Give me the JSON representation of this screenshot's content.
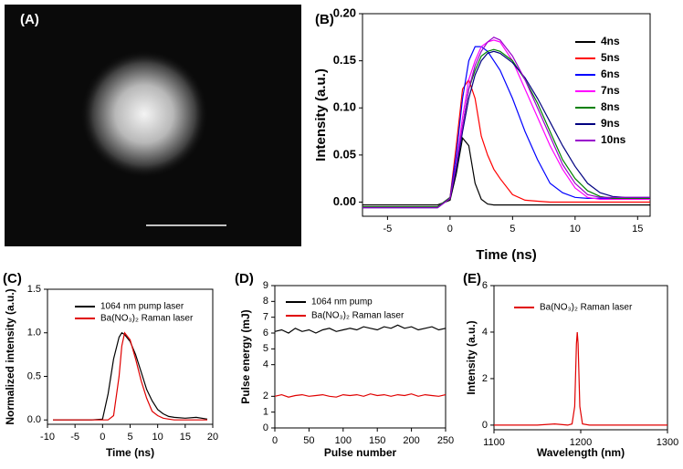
{
  "chart_data": [
    {
      "type": "image",
      "label": "(A)"
    },
    {
      "type": "line",
      "label": "(B)",
      "x_label": "Time (ns)",
      "y_label": "Intensity (a.u.)",
      "x": [
        -7,
        -5,
        -3,
        -1,
        0,
        0.5,
        1,
        1.5,
        2,
        2.5,
        3,
        3.5,
        4,
        5,
        6,
        7,
        8,
        9,
        10,
        11,
        12,
        13,
        14,
        15,
        16
      ],
      "series": [
        {
          "name": "4ns",
          "color": "#000000",
          "values": [
            -0.003,
            -0.003,
            -0.003,
            -0.003,
            0.002,
            0.03,
            0.068,
            0.06,
            0.02,
            0.003,
            -0.002,
            -0.003,
            -0.003,
            -0.003,
            -0.003,
            -0.003,
            -0.003,
            -0.003,
            -0.003,
            -0.003,
            -0.003,
            -0.003,
            -0.003,
            -0.003,
            -0.003
          ]
        },
        {
          "name": "5ns",
          "color": "#ff0000",
          "values": [
            -0.005,
            -0.005,
            -0.005,
            -0.005,
            0.005,
            0.06,
            0.12,
            0.13,
            0.11,
            0.07,
            0.05,
            0.035,
            0.025,
            0.008,
            0.002,
            0.001,
            0,
            0,
            0,
            0,
            0,
            0,
            0,
            0,
            0
          ]
        },
        {
          "name": "6ns",
          "color": "#0000ff",
          "values": [
            -0.005,
            -0.005,
            -0.005,
            -0.005,
            0.005,
            0.05,
            0.11,
            0.15,
            0.165,
            0.165,
            0.16,
            0.15,
            0.14,
            0.11,
            0.075,
            0.045,
            0.02,
            0.01,
            0.005,
            0.004,
            0.004,
            0.004,
            0.004,
            0.004,
            0.004
          ]
        },
        {
          "name": "7ns",
          "color": "#ff00ff",
          "values": [
            -0.005,
            -0.005,
            -0.005,
            -0.005,
            0.005,
            0.04,
            0.09,
            0.13,
            0.15,
            0.165,
            0.17,
            0.172,
            0.17,
            0.15,
            0.12,
            0.09,
            0.06,
            0.035,
            0.015,
            0.005,
            0.003,
            0.003,
            0.003,
            0.003,
            0.003
          ]
        },
        {
          "name": "8ns",
          "color": "#008000",
          "values": [
            -0.005,
            -0.005,
            -0.005,
            -0.005,
            0.005,
            0.04,
            0.08,
            0.12,
            0.14,
            0.155,
            0.16,
            0.162,
            0.16,
            0.15,
            0.13,
            0.105,
            0.075,
            0.045,
            0.025,
            0.012,
            0.006,
            0.004,
            0.004,
            0.004,
            0.004
          ]
        },
        {
          "name": "9ns",
          "color": "#000080",
          "values": [
            -0.006,
            -0.006,
            -0.006,
            -0.006,
            0.004,
            0.035,
            0.075,
            0.11,
            0.135,
            0.15,
            0.158,
            0.16,
            0.158,
            0.148,
            0.132,
            0.11,
            0.085,
            0.06,
            0.038,
            0.02,
            0.01,
            0.006,
            0.005,
            0.005,
            0.005
          ]
        },
        {
          "name": "10ns",
          "color": "#9900cc",
          "values": [
            -0.006,
            -0.006,
            -0.006,
            -0.006,
            0.004,
            0.04,
            0.08,
            0.12,
            0.145,
            0.16,
            0.17,
            0.175,
            0.172,
            0.155,
            0.13,
            0.1,
            0.07,
            0.04,
            0.02,
            0.008,
            0.005,
            0.005,
            0.005,
            0.005,
            0.005
          ]
        }
      ],
      "xlim": [
        -7,
        16
      ],
      "ylim": [
        -0.015,
        0.2
      ],
      "xticks": [
        -5,
        0,
        5,
        10,
        15
      ],
      "yticks": [
        {
          "value": 0,
          "label": "0.00"
        },
        0.05,
        {
          "value": 0.1,
          "label": "0.10"
        },
        0.15,
        {
          "value": 0.2,
          "label": "0.20"
        }
      ]
    },
    {
      "type": "line",
      "label": "(C)",
      "x_label": "Time (ns)",
      "y_label": "Normalized intensity (a.u.)",
      "x": [
        -9,
        -5,
        -2,
        0,
        1,
        2,
        3,
        3.5,
        4,
        5,
        6,
        7,
        8,
        9,
        10,
        11,
        12,
        13,
        15,
        17,
        19
      ],
      "series": [
        {
          "name": "1064 nm pump laser",
          "color": "#000000",
          "values": [
            0,
            0,
            0,
            0.01,
            0.3,
            0.7,
            0.95,
            1.0,
            0.98,
            0.9,
            0.75,
            0.55,
            0.35,
            0.22,
            0.12,
            0.07,
            0.04,
            0.03,
            0.02,
            0.03,
            0.01
          ]
        },
        {
          "name": "Ba(NO₃)₂ Raman laser",
          "color": "#e00000",
          "values": [
            0,
            0,
            0,
            0,
            0,
            0.05,
            0.5,
            0.85,
            1.0,
            0.92,
            0.7,
            0.45,
            0.25,
            0.1,
            0.05,
            0.02,
            0.01,
            0,
            0,
            0,
            0
          ]
        }
      ],
      "xlim": [
        -10,
        20
      ],
      "ylim": [
        -0.05,
        1.5
      ],
      "xticks": [
        -10,
        -5,
        0,
        5,
        10,
        15,
        20
      ],
      "yticks": [
        {
          "value": 0,
          "label": "0.0"
        },
        0.5,
        {
          "value": 1,
          "label": "1.0"
        },
        1.5
      ]
    },
    {
      "type": "line",
      "label": "(D)",
      "x_label": "Pulse number",
      "y_label": "Pulse energy (mJ)",
      "x": [
        0,
        10,
        20,
        30,
        40,
        50,
        60,
        70,
        80,
        90,
        100,
        110,
        120,
        130,
        140,
        150,
        160,
        170,
        180,
        190,
        200,
        210,
        220,
        230,
        240,
        250
      ],
      "series": [
        {
          "name": "1064 nm pump",
          "color": "#000000",
          "values": [
            6.1,
            6.2,
            6.0,
            6.3,
            6.1,
            6.2,
            6.0,
            6.2,
            6.3,
            6.1,
            6.2,
            6.3,
            6.2,
            6.4,
            6.3,
            6.2,
            6.4,
            6.3,
            6.5,
            6.3,
            6.4,
            6.2,
            6.3,
            6.4,
            6.2,
            6.3
          ]
        },
        {
          "name": "Ba(NO₃)₂ Raman laser",
          "color": "#e00000",
          "values": [
            2.0,
            2.1,
            1.95,
            2.05,
            2.1,
            2.0,
            2.05,
            2.1,
            2.0,
            1.95,
            2.1,
            2.05,
            2.1,
            2.0,
            2.15,
            2.05,
            2.1,
            2.0,
            2.1,
            2.05,
            2.15,
            2.0,
            2.1,
            2.05,
            2.0,
            2.1
          ]
        }
      ],
      "xlim": [
        0,
        250
      ],
      "ylim": [
        0,
        9
      ],
      "xticks": [
        0,
        50,
        100,
        150,
        200,
        250
      ],
      "yticks": [
        0,
        1,
        2,
        4,
        5,
        6,
        7,
        8,
        9
      ]
    },
    {
      "type": "line",
      "label": "(E)",
      "x_label": "Wavelength (nm)",
      "y_label": "Intensity (a.u.)",
      "x": [
        1100,
        1150,
        1170,
        1185,
        1190,
        1193,
        1195,
        1196,
        1197,
        1199,
        1202,
        1210,
        1250,
        1300
      ],
      "series": [
        {
          "name": "Ba(NO₃)₂ Raman laser",
          "color": "#e00000",
          "values": [
            0,
            0,
            0.05,
            0,
            0.05,
            0.8,
            3.5,
            4,
            3.5,
            0.8,
            0.05,
            0,
            0,
            0
          ]
        }
      ],
      "xlim": [
        1100,
        1300
      ],
      "ylim": [
        -0.2,
        6
      ],
      "xticks": [
        1100,
        1200,
        1300
      ],
      "yticks": [
        0,
        2,
        4,
        6
      ]
    }
  ]
}
